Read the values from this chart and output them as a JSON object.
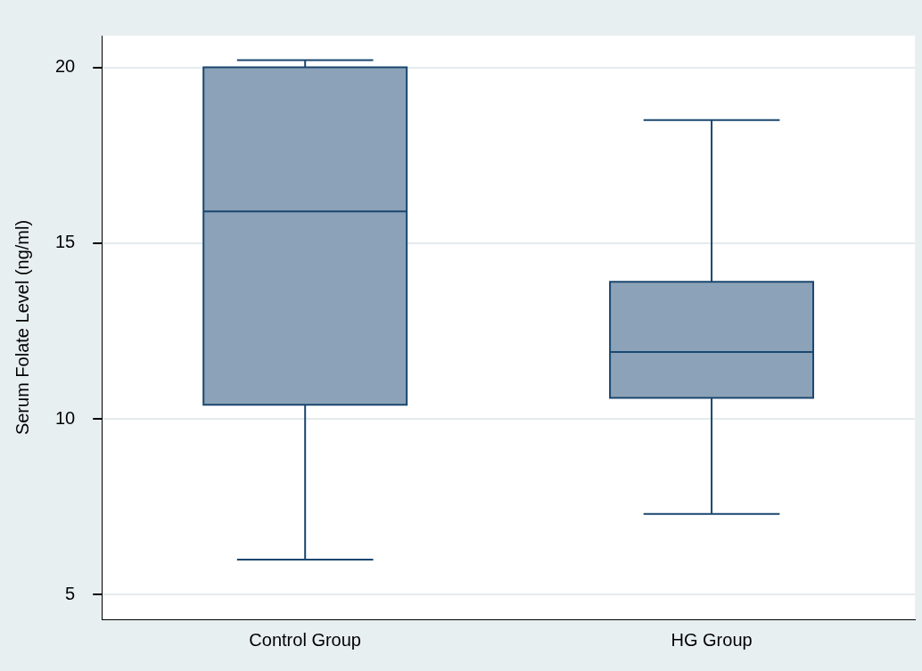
{
  "chart_data": {
    "type": "box",
    "ylabel": "Serum Folate Level (ng/ml)",
    "categories": [
      "Control Group",
      "HG Group"
    ],
    "boxes": [
      {
        "low": 6.0,
        "q1": 10.4,
        "median": 15.9,
        "q3": 20.0,
        "high": 20.2
      },
      {
        "low": 7.3,
        "q1": 10.6,
        "median": 11.9,
        "q3": 13.9,
        "high": 18.5
      }
    ],
    "color": "#8ca2b8",
    "ylim": [
      4.3,
      20.9
    ],
    "yticks": [
      5,
      10,
      15,
      20
    ],
    "grid": "y",
    "legend": false
  }
}
